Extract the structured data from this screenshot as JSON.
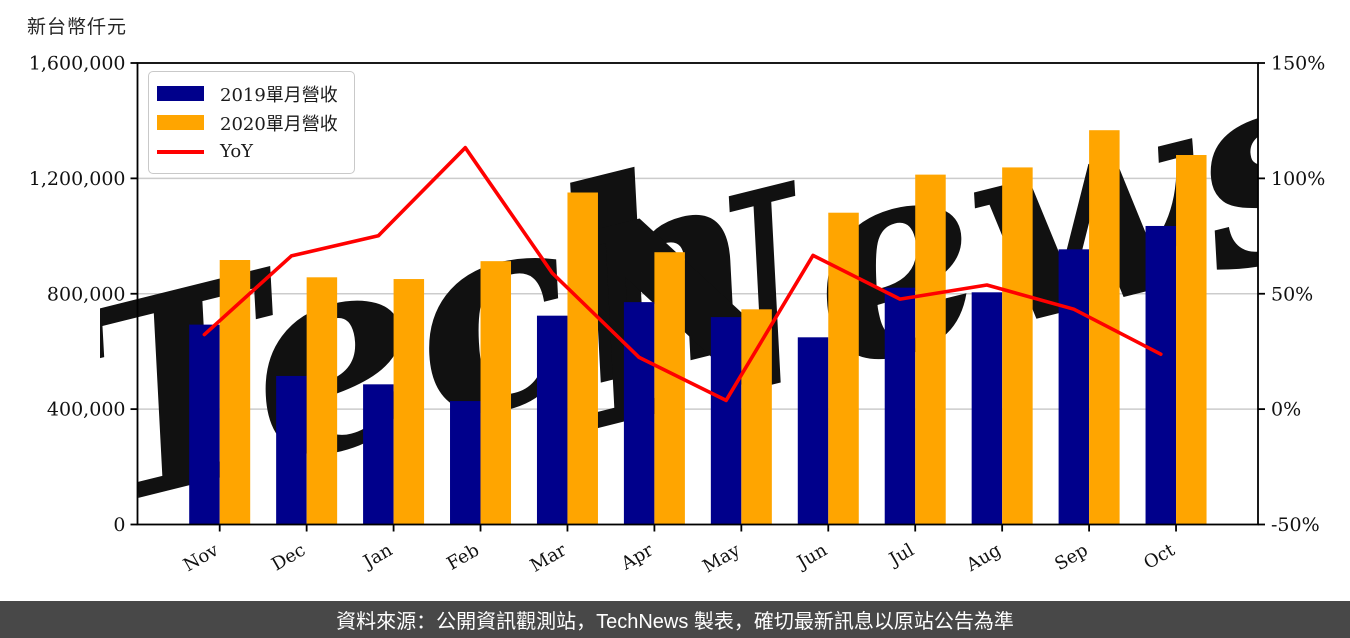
{
  "header": {
    "unit_label": "新台幣仟元"
  },
  "legend": {
    "items": [
      {
        "label": "2019單月營收",
        "color": "#00008B",
        "swatch": "box"
      },
      {
        "label": "2020單月營收",
        "color": "#FFA500",
        "swatch": "box"
      },
      {
        "label": "YoY",
        "color": "#FF0000",
        "swatch": "line"
      }
    ]
  },
  "watermark": {
    "part1": {
      "text": "Tech",
      "color": "#e8e8e8"
    },
    "part2": {
      "text": "News",
      "color": "#f7e3e3"
    }
  },
  "footer": {
    "text": "資料來源：公開資訊觀測站，TechNews 製表，確切最新訊息以原站公告為準",
    "background": "#484848",
    "text_color": "#ffffff"
  },
  "chart_data": {
    "type": "bar",
    "title": "",
    "categories": [
      "Nov",
      "Dec",
      "Jan",
      "Feb",
      "Mar",
      "Apr",
      "May",
      "Jun",
      "Jul",
      "Aug",
      "Sep",
      "Oct"
    ],
    "series": [
      {
        "name": "2019單月營收",
        "type": "bar",
        "axis": "left",
        "color": "#00008B",
        "values": [
          693000,
          515000,
          486000,
          428000,
          724000,
          771000,
          719000,
          649000,
          821000,
          805000,
          954000,
          1035000
        ]
      },
      {
        "name": "2020單月營收",
        "type": "bar",
        "axis": "left",
        "color": "#FFA500",
        "values": [
          917000,
          857000,
          851000,
          913000,
          1151000,
          944000,
          746000,
          1081000,
          1213000,
          1238000,
          1367000,
          1281000
        ]
      },
      {
        "name": "YoY",
        "type": "line",
        "axis": "right",
        "color": "#FF0000",
        "values": [
          32.3,
          66.4,
          75.1,
          113.3,
          59.0,
          22.4,
          3.8,
          66.6,
          47.7,
          53.8,
          43.3,
          23.8
        ],
        "unit": "%"
      }
    ],
    "left_axis": {
      "label": "新台幣仟元",
      "min": 0,
      "max": 1600000,
      "ticks": [
        {
          "value": 1600000,
          "label": "1,600,000"
        },
        {
          "value": 1200000,
          "label": "1,200,000"
        },
        {
          "value": 800000,
          "label": "800,000"
        },
        {
          "value": 400000,
          "label": "400,000"
        },
        {
          "value": 0,
          "label": "0"
        }
      ]
    },
    "right_axis": {
      "label": "",
      "min": -50,
      "max": 150,
      "ticks": [
        {
          "value": 150,
          "label": "150%"
        },
        {
          "value": 100,
          "label": "100%"
        },
        {
          "value": 50,
          "label": "50%"
        },
        {
          "value": 0,
          "label": "0%"
        },
        {
          "value": -50,
          "label": "-50%"
        }
      ]
    },
    "grid": {
      "color": "#cccccc",
      "values_left": [
        1200000,
        800000,
        400000
      ]
    },
    "legend_position": "upper-left",
    "x_label_rotation_deg": 30
  }
}
